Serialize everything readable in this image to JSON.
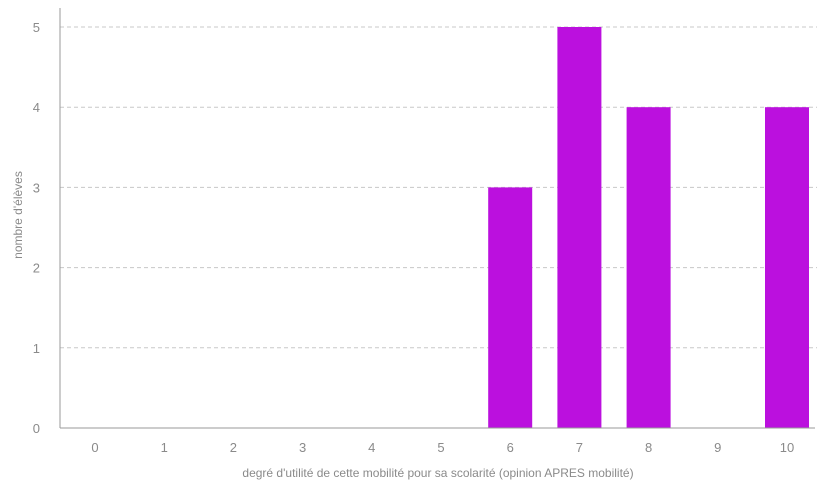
{
  "chart_data": {
    "type": "bar",
    "categories": [
      "0",
      "1",
      "2",
      "3",
      "4",
      "5",
      "6",
      "7",
      "8",
      "9",
      "10"
    ],
    "values": [
      0,
      0,
      0,
      0,
      0,
      0,
      3,
      5,
      4,
      0,
      4
    ],
    "xlabel": "degré d'utilité de cette mobilité pour sa scolarité (opinion APRES mobilité)",
    "ylabel": "nombre d'élèves",
    "ylim": [
      0,
      5
    ],
    "yticks": [
      "0",
      "1",
      "2",
      "3",
      "4",
      "5"
    ],
    "grid": true,
    "bar_color": "#bb10de",
    "grid_color": "#c8c8c8",
    "axis_color": "#9a9a9a"
  }
}
